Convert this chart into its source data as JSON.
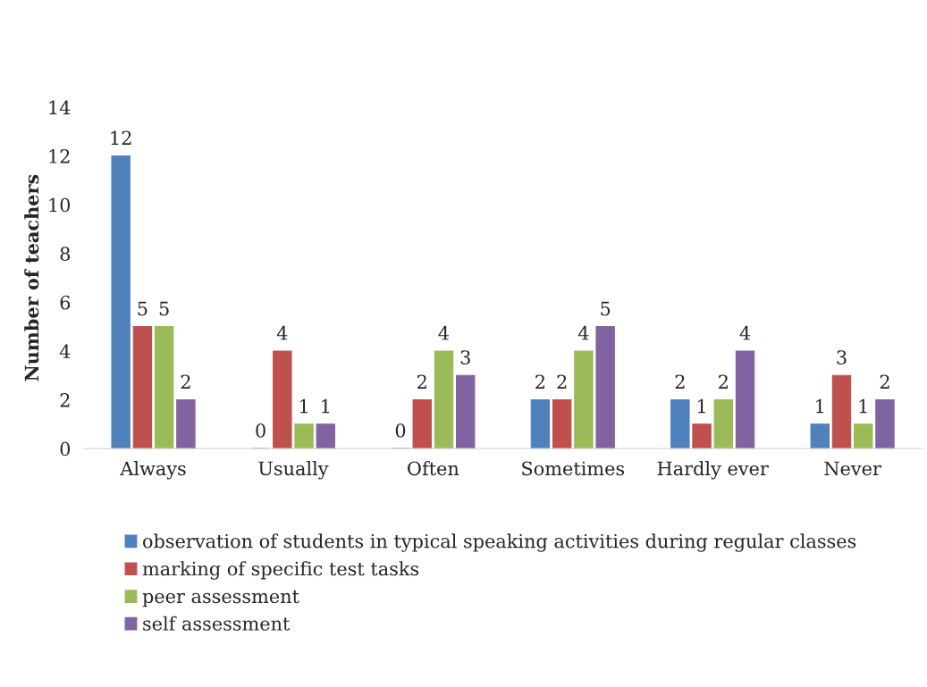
{
  "chart_data": {
    "type": "bar",
    "ylabel": "Number of teachers",
    "categories": [
      "Always",
      "Usually",
      "Often",
      "Sometimes",
      "Hardly ever",
      "Never"
    ],
    "series": [
      {
        "name": "observation of students in typical speaking activities during regular classes",
        "color": "#4f81bd",
        "values": [
          12,
          0,
          0,
          2,
          2,
          1
        ]
      },
      {
        "name": "marking of specific test tasks",
        "color": "#c0504d",
        "values": [
          5,
          4,
          2,
          2,
          1,
          3
        ]
      },
      {
        "name": "peer assessment",
        "color": "#9bbb59",
        "values": [
          5,
          1,
          4,
          4,
          2,
          1
        ]
      },
      {
        "name": "self assessment",
        "color": "#8064a2",
        "values": [
          2,
          1,
          3,
          5,
          4,
          2
        ]
      }
    ],
    "ylim": [
      0,
      14
    ],
    "yticks": [
      0,
      2,
      4,
      6,
      8,
      10,
      12,
      14
    ],
    "data_labels": true,
    "grid": false,
    "legend": "bottom"
  }
}
